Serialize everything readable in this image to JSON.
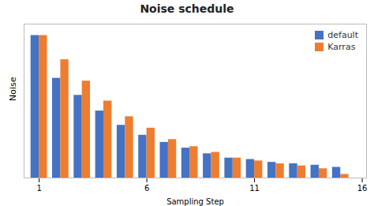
{
  "chart_data": {
    "type": "bar",
    "title": "Noise schedule",
    "xlabel": "Sampling Step",
    "ylabel": "Noise",
    "x": [
      1,
      2,
      3,
      4,
      5,
      6,
      7,
      8,
      9,
      10,
      11,
      12,
      13,
      14,
      15
    ],
    "series": [
      {
        "name": "default",
        "color": "#4472C4",
        "values": [
          1.0,
          0.7,
          0.58,
          0.47,
          0.37,
          0.3,
          0.25,
          0.21,
          0.17,
          0.14,
          0.13,
          0.11,
          0.1,
          0.09,
          0.075
        ]
      },
      {
        "name": "Karras",
        "color": "#ED7D31",
        "values": [
          1.0,
          0.83,
          0.68,
          0.54,
          0.43,
          0.35,
          0.27,
          0.22,
          0.18,
          0.14,
          0.12,
          0.1,
          0.085,
          0.065,
          0.025
        ]
      }
    ],
    "xlim": [
      0.3,
      16.2
    ],
    "xticks": [
      1,
      6,
      11,
      16
    ],
    "ylim": [
      0,
      1.08
    ],
    "yticks": [],
    "tick_labels": "x",
    "grid": false,
    "legend": "upper right"
  }
}
